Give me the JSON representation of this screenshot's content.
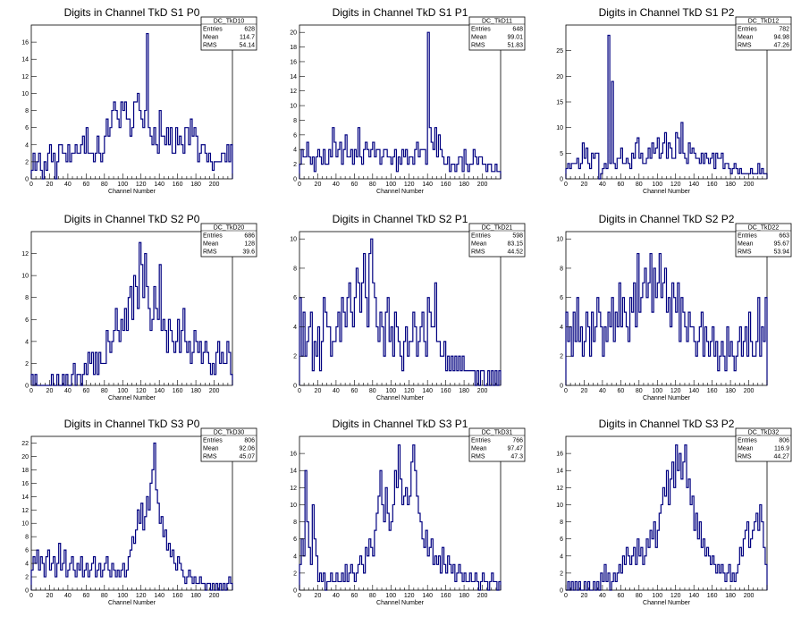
{
  "chart_data": [
    {
      "id": "TkD10",
      "type": "histogram",
      "title": "Digits in Channel TkD S1 P0",
      "xlabel": "Channel Number",
      "xlim": [
        0,
        220
      ],
      "ylim": [
        0,
        18
      ],
      "xticks": [
        0,
        20,
        40,
        60,
        80,
        100,
        120,
        140,
        160,
        180,
        200
      ],
      "yticks": [
        0,
        2,
        4,
        6,
        8,
        10,
        12,
        14,
        16
      ],
      "stats": {
        "name": "DC_TkD10",
        "entries": "628",
        "mean": "114.7",
        "rms": "54.14"
      },
      "bin_width": 2,
      "values": [
        1,
        3,
        1,
        2,
        3,
        1,
        0,
        2,
        1,
        3,
        4,
        2,
        3,
        0,
        2,
        4,
        4,
        3,
        3,
        2,
        4,
        2,
        3,
        3,
        4,
        3,
        3,
        4,
        5,
        3,
        6,
        3,
        3,
        3,
        2,
        3,
        5,
        3,
        2,
        3,
        5,
        7,
        5,
        6,
        8,
        9,
        8,
        7,
        6,
        9,
        8,
        9,
        7,
        7,
        5,
        6,
        9,
        9,
        10,
        8,
        7,
        6,
        8,
        17,
        6,
        5,
        4,
        6,
        4,
        3,
        8,
        5,
        5,
        4,
        6,
        4,
        6,
        3,
        3,
        6,
        4,
        5,
        4,
        3,
        6,
        6,
        4,
        7,
        5,
        6,
        5,
        2,
        3,
        4,
        4,
        3,
        2,
        3,
        2,
        1,
        2,
        2,
        2,
        2,
        3,
        3,
        2,
        4,
        2,
        4
      ]
    },
    {
      "id": "TkD11",
      "type": "histogram",
      "title": "Digits in Channel TkD S1 P1",
      "xlabel": "Channel Number",
      "xlim": [
        0,
        220
      ],
      "ylim": [
        0,
        21
      ],
      "xticks": [
        0,
        20,
        40,
        60,
        80,
        100,
        120,
        140,
        160,
        180,
        200
      ],
      "yticks": [
        0,
        2,
        4,
        6,
        8,
        10,
        12,
        14,
        16,
        18,
        20
      ],
      "stats": {
        "name": "DC_TkD11",
        "entries": "648",
        "mean": "99.01",
        "rms": "51.83"
      },
      "bin_width": 2,
      "values": [
        2,
        4,
        3,
        3,
        5,
        3,
        2,
        3,
        1,
        3,
        4,
        3,
        2,
        4,
        2,
        2,
        4,
        3,
        7,
        5,
        3,
        4,
        5,
        2,
        4,
        6,
        3,
        3,
        4,
        2,
        4,
        3,
        7,
        3,
        2,
        4,
        5,
        4,
        3,
        4,
        5,
        3,
        4,
        4,
        2,
        3,
        4,
        4,
        3,
        3,
        2,
        3,
        4,
        1,
        3,
        2,
        4,
        3,
        4,
        2,
        3,
        3,
        2,
        4,
        5,
        3,
        4,
        4,
        4,
        2,
        20,
        7,
        5,
        4,
        7,
        3,
        6,
        4,
        3,
        2,
        2,
        3,
        1,
        2,
        2,
        1,
        2,
        3,
        3,
        1,
        4,
        2,
        1,
        2,
        2,
        4,
        3,
        2,
        3,
        3,
        2,
        2,
        1,
        2,
        2,
        1,
        1,
        2,
        1,
        1
      ]
    },
    {
      "id": "TkD12",
      "type": "histogram",
      "title": "Digits in Channel TkD S1 P2",
      "xlabel": "Channel Number",
      "xlim": [
        0,
        220
      ],
      "ylim": [
        0,
        30
      ],
      "xticks": [
        0,
        20,
        40,
        60,
        80,
        100,
        120,
        140,
        160,
        180,
        200
      ],
      "yticks": [
        0,
        5,
        10,
        15,
        20,
        25
      ],
      "stats": {
        "name": "DC_TkD12",
        "entries": "782",
        "mean": "94.98",
        "rms": "47.26"
      },
      "bin_width": 2,
      "values": [
        2,
        3,
        2,
        3,
        3,
        3,
        4,
        2,
        3,
        7,
        4,
        6,
        3,
        2,
        5,
        4,
        5,
        5,
        0,
        1,
        2,
        3,
        2,
        28,
        3,
        19,
        3,
        2,
        4,
        4,
        6,
        3,
        3,
        4,
        3,
        2,
        5,
        4,
        7,
        8,
        4,
        5,
        3,
        3,
        4,
        6,
        4,
        7,
        5,
        6,
        8,
        4,
        5,
        7,
        9,
        4,
        7,
        6,
        4,
        4,
        9,
        8,
        5,
        11,
        5,
        4,
        3,
        7,
        5,
        6,
        5,
        4,
        4,
        3,
        5,
        3,
        5,
        4,
        3,
        4,
        5,
        2,
        5,
        4,
        4,
        5,
        2,
        3,
        3,
        2,
        1,
        2,
        3,
        2,
        1,
        2,
        1,
        1,
        1,
        1,
        1,
        2,
        1,
        1,
        1,
        3,
        1,
        2,
        1,
        1
      ]
    },
    {
      "id": "TkD20",
      "type": "histogram",
      "title": "Digits in Channel TkD S2 P0",
      "xlabel": "Channel Number",
      "xlim": [
        0,
        220
      ],
      "ylim": [
        0,
        14
      ],
      "xticks": [
        0,
        20,
        40,
        60,
        80,
        100,
        120,
        140,
        160,
        180,
        200
      ],
      "yticks": [
        0,
        2,
        4,
        6,
        8,
        10,
        12
      ],
      "stats": {
        "name": "DC_TkD20",
        "entries": "686",
        "mean": "128",
        "rms": "39.6"
      },
      "bin_width": 2,
      "values": [
        1,
        0,
        1,
        0,
        0,
        0,
        0,
        0,
        0,
        0,
        0,
        1,
        0,
        0,
        1,
        0,
        0,
        1,
        0,
        1,
        0,
        0,
        1,
        2,
        0,
        1,
        1,
        0,
        1,
        2,
        1,
        3,
        2,
        3,
        1,
        3,
        1,
        3,
        2,
        2,
        2,
        5,
        4,
        3,
        4,
        5,
        7,
        5,
        4,
        6,
        5,
        7,
        5,
        8,
        9,
        6,
        10,
        9,
        7,
        13,
        11,
        8,
        12,
        9,
        7,
        5,
        6,
        9,
        7,
        6,
        11,
        5,
        6,
        5,
        3,
        6,
        5,
        4,
        3,
        4,
        6,
        3,
        5,
        7,
        4,
        3,
        4,
        2,
        3,
        5,
        4,
        3,
        4,
        2,
        3,
        4,
        3,
        2,
        1,
        2,
        1,
        3,
        4,
        2,
        3,
        2,
        2,
        4,
        3,
        1
      ]
    },
    {
      "id": "TkD21",
      "type": "histogram",
      "title": "Digits in Channel TkD S2 P1",
      "xlabel": "Channel Number",
      "xlim": [
        0,
        220
      ],
      "ylim": [
        0,
        10.5
      ],
      "xticks": [
        0,
        20,
        40,
        60,
        80,
        100,
        120,
        140,
        160,
        180,
        200
      ],
      "yticks": [
        0,
        2,
        4,
        6,
        8,
        10
      ],
      "stats": {
        "name": "DC_TkD21",
        "entries": "598",
        "mean": "83.15",
        "rms": "44.52"
      },
      "bin_width": 2,
      "values": [
        6,
        2,
        5,
        2,
        3,
        4,
        5,
        1,
        3,
        2,
        4,
        1,
        3,
        6,
        5,
        4,
        4,
        2,
        3,
        3,
        4,
        5,
        3,
        6,
        5,
        4,
        6,
        7,
        5,
        4,
        6,
        8,
        7,
        5,
        7,
        9,
        6,
        4,
        9,
        10,
        7,
        6,
        4,
        3,
        5,
        4,
        2,
        5,
        6,
        3,
        4,
        2,
        5,
        4,
        3,
        2,
        1,
        3,
        4,
        2,
        3,
        3,
        5,
        4,
        2,
        3,
        4,
        5,
        3,
        2,
        6,
        5,
        4,
        4,
        7,
        3,
        3,
        2,
        2,
        3,
        1,
        2,
        1,
        2,
        1,
        2,
        1,
        2,
        1,
        2,
        1,
        1,
        1,
        1,
        1,
        1,
        0,
        1,
        0,
        1,
        1,
        0,
        0,
        1,
        0,
        1,
        0,
        1,
        0,
        1
      ]
    },
    {
      "id": "TkD22",
      "type": "histogram",
      "title": "Digits in Channel TkD S2 P2",
      "xlabel": "Channel Number",
      "xlim": [
        0,
        220
      ],
      "ylim": [
        0,
        10.5
      ],
      "xticks": [
        0,
        20,
        40,
        60,
        80,
        100,
        120,
        140,
        160,
        180,
        200
      ],
      "yticks": [
        0,
        2,
        4,
        6,
        8,
        10
      ],
      "stats": {
        "name": "DC_TkD22",
        "entries": "663",
        "mean": "95.67",
        "rms": "53.94"
      },
      "bin_width": 2,
      "values": [
        5,
        3,
        4,
        2,
        5,
        3,
        6,
        3,
        4,
        2,
        3,
        5,
        4,
        2,
        5,
        3,
        4,
        6,
        5,
        4,
        2,
        4,
        3,
        5,
        4,
        6,
        3,
        5,
        4,
        7,
        4,
        6,
        5,
        4,
        3,
        6,
        5,
        7,
        4,
        9,
        5,
        6,
        7,
        8,
        6,
        7,
        9,
        5,
        8,
        6,
        7,
        9,
        6,
        7,
        8,
        5,
        6,
        4,
        7,
        6,
        5,
        7,
        3,
        6,
        5,
        4,
        3,
        5,
        4,
        4,
        3,
        2,
        3,
        4,
        5,
        2,
        4,
        3,
        2,
        3,
        4,
        2,
        3,
        1,
        2,
        3,
        2,
        1,
        4,
        2,
        3,
        2,
        1,
        2,
        3,
        4,
        2,
        3,
        4,
        2,
        5,
        3,
        2,
        2,
        3,
        6,
        2,
        4,
        3,
        6
      ]
    },
    {
      "id": "TkD30",
      "type": "histogram",
      "title": "Digits in Channel TkD S3 P0",
      "xlabel": "Channel Number",
      "xlim": [
        0,
        220
      ],
      "ylim": [
        0,
        23
      ],
      "xticks": [
        0,
        20,
        40,
        60,
        80,
        100,
        120,
        140,
        160,
        180,
        200
      ],
      "yticks": [
        0,
        2,
        4,
        6,
        8,
        10,
        12,
        14,
        16,
        18,
        20,
        22
      ],
      "stats": {
        "name": "DC_TkD30",
        "entries": "806",
        "mean": "92.06",
        "rms": "45.07"
      },
      "bin_width": 2,
      "values": [
        3,
        5,
        4,
        6,
        3,
        5,
        4,
        2,
        5,
        6,
        3,
        4,
        5,
        2,
        4,
        7,
        3,
        4,
        6,
        2,
        3,
        4,
        5,
        3,
        2,
        4,
        3,
        5,
        2,
        3,
        4,
        2,
        3,
        4,
        5,
        2,
        3,
        4,
        2,
        3,
        4,
        5,
        3,
        2,
        4,
        3,
        2,
        3,
        2,
        3,
        4,
        2,
        3,
        5,
        6,
        8,
        7,
        9,
        12,
        10,
        13,
        9,
        11,
        14,
        12,
        16,
        18,
        22,
        15,
        13,
        10,
        11,
        8,
        9,
        6,
        7,
        5,
        6,
        4,
        3,
        5,
        4,
        3,
        2,
        1,
        2,
        3,
        2,
        1,
        2,
        1,
        1,
        2,
        1,
        1,
        0,
        1,
        1,
        0,
        1,
        0,
        1,
        0,
        1,
        0,
        1,
        0,
        1,
        2,
        1
      ]
    },
    {
      "id": "TkD31",
      "type": "histogram",
      "title": "Digits in Channel TkD S3 P1",
      "xlabel": "Channel Number",
      "xlim": [
        0,
        220
      ],
      "ylim": [
        0,
        18
      ],
      "xticks": [
        0,
        20,
        40,
        60,
        80,
        100,
        120,
        140,
        160,
        180,
        200
      ],
      "yticks": [
        0,
        2,
        4,
        6,
        8,
        10,
        12,
        14,
        16
      ],
      "stats": {
        "name": "DC_TkD31",
        "entries": "766",
        "mean": "97.47",
        "rms": "47.3"
      },
      "bin_width": 2,
      "values": [
        3,
        6,
        4,
        14,
        8,
        5,
        3,
        10,
        6,
        4,
        1,
        2,
        1,
        2,
        0,
        1,
        1,
        2,
        1,
        1,
        2,
        1,
        1,
        2,
        1,
        3,
        1,
        2,
        3,
        2,
        1,
        2,
        3,
        4,
        3,
        2,
        5,
        4,
        6,
        5,
        4,
        7,
        9,
        11,
        14,
        10,
        8,
        12,
        9,
        7,
        8,
        10,
        14,
        12,
        17,
        13,
        10,
        11,
        12,
        10,
        11,
        15,
        17,
        14,
        11,
        9,
        8,
        6,
        5,
        7,
        4,
        5,
        6,
        3,
        4,
        3,
        4,
        2,
        5,
        3,
        2,
        4,
        3,
        2,
        3,
        1,
        2,
        3,
        2,
        1,
        2,
        1,
        1,
        2,
        1,
        1,
        2,
        1,
        0,
        1,
        2,
        1,
        1,
        0,
        1,
        2,
        1,
        1,
        0,
        1
      ]
    },
    {
      "id": "TkD32",
      "type": "histogram",
      "title": "Digits in Channel TkD S3 P2",
      "xlabel": "Channel Number",
      "xlim": [
        0,
        220
      ],
      "ylim": [
        0,
        18
      ],
      "xticks": [
        0,
        20,
        40,
        60,
        80,
        100,
        120,
        140,
        160,
        180,
        200
      ],
      "yticks": [
        0,
        2,
        4,
        6,
        8,
        10,
        12,
        14,
        16
      ],
      "stats": {
        "name": "DC_TkD32",
        "entries": "806",
        "mean": "116.9",
        "rms": "44.27"
      },
      "bin_width": 2,
      "values": [
        0,
        1,
        0,
        1,
        0,
        1,
        0,
        1,
        0,
        0,
        1,
        0,
        1,
        0,
        0,
        1,
        0,
        1,
        0,
        2,
        1,
        3,
        1,
        2,
        0,
        1,
        2,
        1,
        2,
        3,
        2,
        4,
        3,
        5,
        4,
        3,
        4,
        5,
        3,
        6,
        4,
        5,
        3,
        4,
        6,
        5,
        7,
        6,
        8,
        5,
        7,
        9,
        10,
        12,
        11,
        14,
        10,
        13,
        15,
        12,
        17,
        14,
        16,
        13,
        15,
        17,
        12,
        13,
        10,
        11,
        7,
        9,
        6,
        8,
        5,
        6,
        4,
        5,
        4,
        3,
        4,
        3,
        2,
        3,
        2,
        3,
        2,
        1,
        2,
        3,
        1,
        2,
        1,
        2,
        3,
        5,
        4,
        6,
        7,
        8,
        5,
        6,
        7,
        8,
        9,
        7,
        10,
        8,
        5,
        3
      ]
    }
  ]
}
